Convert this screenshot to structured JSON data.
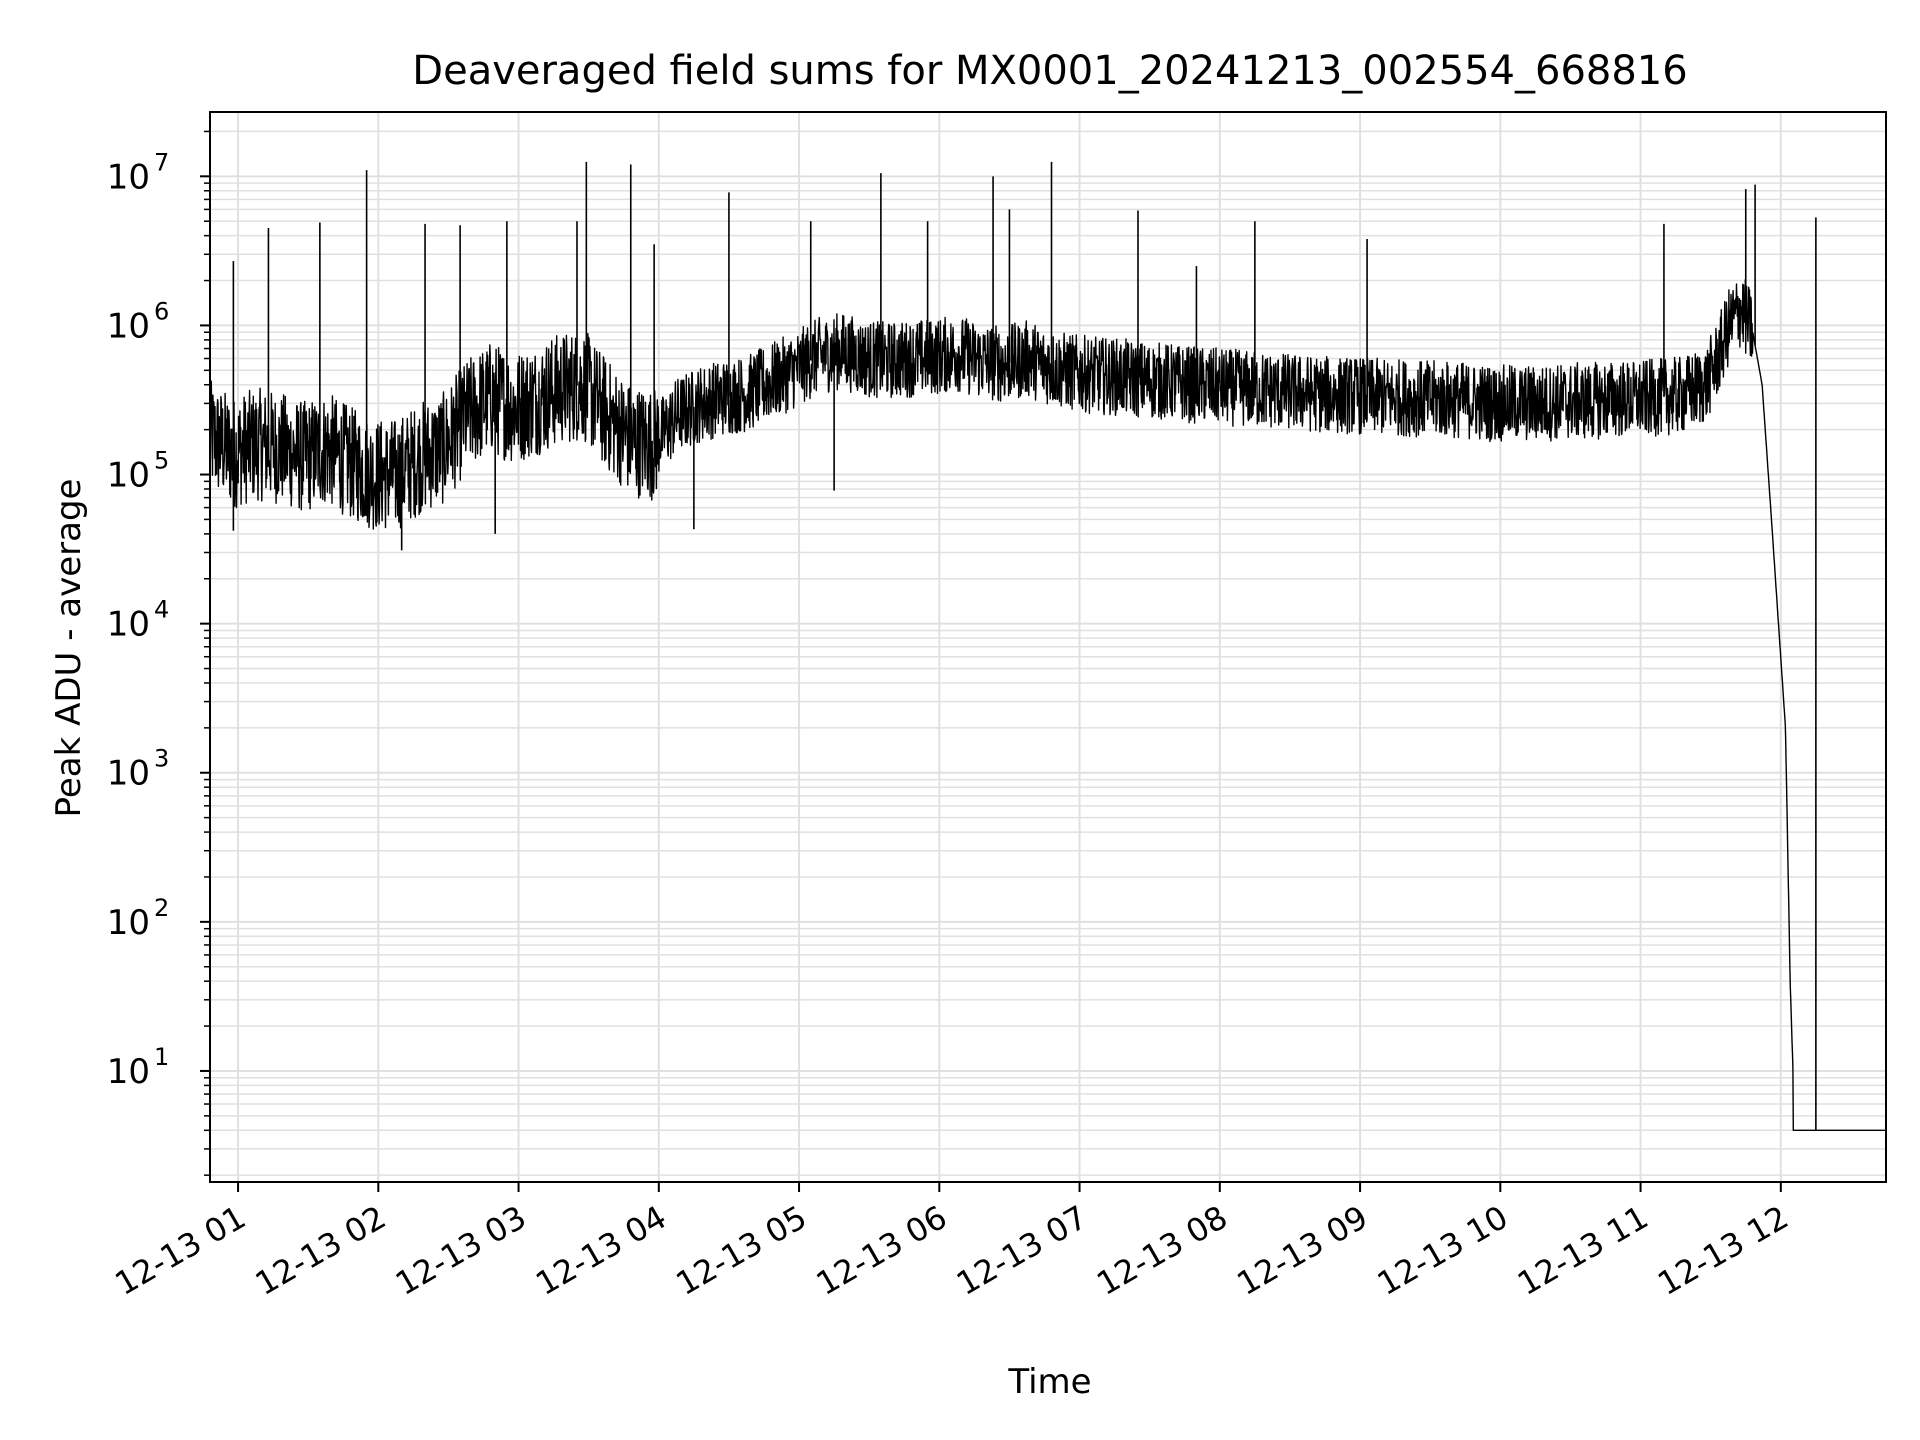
{
  "chart_data": {
    "type": "line",
    "title": "Deaveraged field sums for MX0001_20241213_002554_668816",
    "xlabel": "Time",
    "ylabel": "Peak ADU - average",
    "yscale": "log",
    "ylim": [
      1.8,
      27000000
    ],
    "xlim": [
      "2024-12-13T00:48",
      "2024-12-13T12:45"
    ],
    "x_ticks": [
      {
        "label": "12-13 01",
        "time": "2024-12-13T01:00"
      },
      {
        "label": "12-13 02",
        "time": "2024-12-13T02:00"
      },
      {
        "label": "12-13 03",
        "time": "2024-12-13T03:00"
      },
      {
        "label": "12-13 04",
        "time": "2024-12-13T04:00"
      },
      {
        "label": "12-13 05",
        "time": "2024-12-13T05:00"
      },
      {
        "label": "12-13 06",
        "time": "2024-12-13T06:00"
      },
      {
        "label": "12-13 07",
        "time": "2024-12-13T07:00"
      },
      {
        "label": "12-13 08",
        "time": "2024-12-13T08:00"
      },
      {
        "label": "12-13 09",
        "time": "2024-12-13T09:00"
      },
      {
        "label": "12-13 10",
        "time": "2024-12-13T10:00"
      },
      {
        "label": "12-13 11",
        "time": "2024-12-13T11:00"
      },
      {
        "label": "12-13 12",
        "time": "2024-12-13T12:00"
      }
    ],
    "y_ticks": [
      {
        "base": "10",
        "exp": "1",
        "value": 10
      },
      {
        "base": "10",
        "exp": "2",
        "value": 100
      },
      {
        "base": "10",
        "exp": "3",
        "value": 1000
      },
      {
        "base": "10",
        "exp": "4",
        "value": 10000
      },
      {
        "base": "10",
        "exp": "5",
        "value": 100000
      },
      {
        "base": "10",
        "exp": "6",
        "value": 1000000
      },
      {
        "base": "10",
        "exp": "7",
        "value": 10000000
      }
    ],
    "grid": true,
    "line_color": "#000000",
    "grid_color": "#e0e0e0",
    "series": [
      {
        "color": "#000000",
        "x": [
          "00:48",
          "00:58",
          "01:08",
          "01:18",
          "01:28",
          "01:38",
          "01:48",
          "01:58",
          "02:08",
          "02:18",
          "02:28",
          "02:38",
          "02:48",
          "02:58",
          "03:08",
          "03:18",
          "03:28",
          "03:38",
          "03:48",
          "03:58",
          "04:08",
          "04:18",
          "04:28",
          "04:38",
          "04:48",
          "04:58",
          "05:08",
          "05:18",
          "05:28",
          "05:38",
          "05:48",
          "05:58",
          "06:08",
          "06:18",
          "06:28",
          "06:38",
          "06:48",
          "06:58",
          "07:08",
          "07:18",
          "07:28",
          "07:38",
          "07:48",
          "07:58",
          "08:08",
          "08:18",
          "08:28",
          "08:38",
          "08:48",
          "08:58",
          "09:08",
          "09:18",
          "09:28",
          "09:38",
          "09:48",
          "09:58",
          "10:08",
          "10:18",
          "10:28",
          "10:38",
          "10:48",
          "10:58",
          "11:08",
          "11:18",
          "11:28",
          "11:33",
          "11:38",
          "11:43",
          "11:48",
          "11:52",
          "11:56",
          "12:02",
          "12:04",
          "12:06",
          "12:10",
          "12:20",
          "12:30",
          "12:45"
        ],
        "y": [
          180000,
          140000,
          160000,
          150000,
          130000,
          150000,
          120000,
          100000,
          100000,
          130000,
          150000,
          250000,
          330000,
          280000,
          320000,
          380000,
          400000,
          250000,
          170000,
          160000,
          250000,
          300000,
          330000,
          350000,
          420000,
          500000,
          620000,
          680000,
          600000,
          580000,
          600000,
          620000,
          650000,
          580000,
          550000,
          600000,
          520000,
          480000,
          460000,
          450000,
          430000,
          420000,
          400000,
          390000,
          380000,
          370000,
          360000,
          350000,
          340000,
          340000,
          330000,
          330000,
          320000,
          320000,
          310000,
          300000,
          300000,
          300000,
          310000,
          310000,
          320000,
          320000,
          330000,
          340000,
          400000,
          600000,
          1000000,
          1300000,
          900000,
          400000,
          50000,
          2000,
          40,
          4,
          4,
          4,
          4,
          4
        ]
      }
    ],
    "spikes": [
      {
        "x": "00:58",
        "y": 2700000
      },
      {
        "x": "01:13",
        "y": 4500000
      },
      {
        "x": "01:35",
        "y": 4900000
      },
      {
        "x": "01:55",
        "y": 11000000
      },
      {
        "x": "02:20",
        "y": 4800000
      },
      {
        "x": "02:35",
        "y": 4700000
      },
      {
        "x": "02:55",
        "y": 5000000
      },
      {
        "x": "03:25",
        "y": 5000000
      },
      {
        "x": "03:29",
        "y": 12500000
      },
      {
        "x": "03:48",
        "y": 12000000
      },
      {
        "x": "03:58",
        "y": 3500000
      },
      {
        "x": "04:30",
        "y": 7800000
      },
      {
        "x": "05:05",
        "y": 5000000
      },
      {
        "x": "05:35",
        "y": 10500000
      },
      {
        "x": "05:55",
        "y": 5000000
      },
      {
        "x": "06:23",
        "y": 10000000
      },
      {
        "x": "06:30",
        "y": 6000000
      },
      {
        "x": "06:48",
        "y": 12500000
      },
      {
        "x": "07:25",
        "y": 5900000
      },
      {
        "x": "07:50",
        "y": 2500000
      },
      {
        "x": "08:15",
        "y": 5000000
      },
      {
        "x": "09:03",
        "y": 3800000
      },
      {
        "x": "11:10",
        "y": 4800000
      },
      {
        "x": "11:45",
        "y": 8200000
      },
      {
        "x": "11:49",
        "y": 8800000
      },
      {
        "x": "12:15",
        "y": 5300000
      }
    ],
    "dips": [
      {
        "x": "00:58",
        "y": 42000
      },
      {
        "x": "02:10",
        "y": 31000
      },
      {
        "x": "02:50",
        "y": 40000
      },
      {
        "x": "04:15",
        "y": 43000
      },
      {
        "x": "05:15",
        "y": 78000
      }
    ]
  }
}
